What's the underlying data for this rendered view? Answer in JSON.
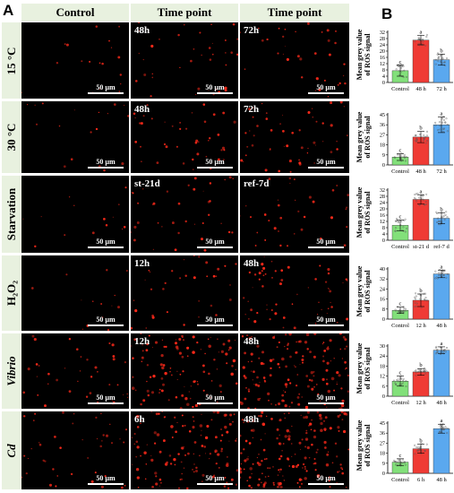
{
  "panel_a": "A",
  "panel_b": "B",
  "headers": [
    "Control",
    "Time point",
    "Time point"
  ],
  "scale_bar": "50 µm",
  "rows": [
    {
      "label": "15 °C",
      "t1": "48h",
      "t2": "72h",
      "den": [
        0.25,
        0.55,
        0.5
      ]
    },
    {
      "label": "30 °C",
      "t1": "48h",
      "t2": "72h",
      "den": [
        0.25,
        0.6,
        0.75
      ]
    },
    {
      "label": "Starvation",
      "t1": "st-21d",
      "t2": "ref-7d",
      "den": [
        0.2,
        0.55,
        0.5
      ]
    },
    {
      "label": "H₂O₂",
      "t1": "12h",
      "t2": "48h",
      "den": [
        0.2,
        0.5,
        0.85
      ]
    },
    {
      "label": "Vibrio",
      "t1": "12h",
      "t2": "48h",
      "den": [
        0.55,
        1.6,
        2.2
      ]
    },
    {
      "label": "Cd",
      "t1": "6h",
      "t2": "48h",
      "den": [
        0.6,
        1.9,
        2.6
      ]
    }
  ],
  "colors": {
    "control": "#82e07a",
    "mid": "#ef3b35",
    "late": "#5aa8ef",
    "signal": "#ff2a1a"
  },
  "chart_data": [
    {
      "type": "bar",
      "ylabel": "Mean grey value of ROS signal",
      "categories": [
        "Control",
        "48 h",
        "72 h"
      ],
      "values": [
        7.5,
        27,
        14.5
      ],
      "errors": [
        3.5,
        3,
        3.5
      ],
      "ylim": [
        0,
        32
      ],
      "ticks": [
        0,
        4,
        8,
        12,
        16,
        20,
        24,
        28,
        32
      ],
      "letters": [
        "c",
        "a",
        "b"
      ]
    },
    {
      "type": "bar",
      "ylabel": "Mean grey value of ROS signal",
      "categories": [
        "Control",
        "48 h",
        "72 h"
      ],
      "values": [
        7,
        25,
        36
      ],
      "errors": [
        3,
        5,
        7
      ],
      "ylim": [
        0,
        45
      ],
      "ticks": [
        0,
        9,
        18,
        27,
        36,
        45
      ],
      "letters": [
        "c",
        "b",
        "a"
      ]
    },
    {
      "type": "bar",
      "ylabel": "Mean grey value of ROS signal",
      "categories": [
        "Control",
        "st-21 d",
        "ref-7 d"
      ],
      "values": [
        9.5,
        26,
        14
      ],
      "errors": [
        3.5,
        3,
        3.5
      ],
      "ylim": [
        0,
        32
      ],
      "ticks": [
        0,
        4,
        8,
        12,
        16,
        20,
        24,
        28,
        32
      ],
      "letters": [
        "c",
        "a",
        "b"
      ]
    },
    {
      "type": "bar",
      "ylabel": "Mean grey value of ROS signal",
      "categories": [
        "Control",
        "12 h",
        "48 h"
      ],
      "values": [
        7,
        15,
        36
      ],
      "errors": [
        2.5,
        5,
        3
      ],
      "ylim": [
        0,
        40
      ],
      "ticks": [
        0,
        8,
        16,
        24,
        32,
        40
      ],
      "letters": [
        "c",
        "b",
        "a"
      ]
    },
    {
      "type": "bar",
      "ylabel": "Mean grey value of ROS signal",
      "categories": [
        "Control",
        "12 h",
        "48 h"
      ],
      "values": [
        9,
        14.5,
        27.5
      ],
      "errors": [
        3,
        2,
        2
      ],
      "ylim": [
        0,
        30
      ],
      "ticks": [
        0,
        6,
        12,
        18,
        24,
        30
      ],
      "letters": [
        "c",
        "b",
        "a"
      ]
    },
    {
      "type": "bar",
      "ylabel": "Mean grey value of ROS signal",
      "categories": [
        "Control",
        "6 h",
        "48 h"
      ],
      "values": [
        10,
        22,
        40
      ],
      "errors": [
        3,
        4,
        4
      ],
      "ylim": [
        0,
        45
      ],
      "ticks": [
        0,
        9,
        18,
        27,
        36,
        45
      ],
      "letters": [
        "c",
        "b",
        "a"
      ]
    }
  ]
}
